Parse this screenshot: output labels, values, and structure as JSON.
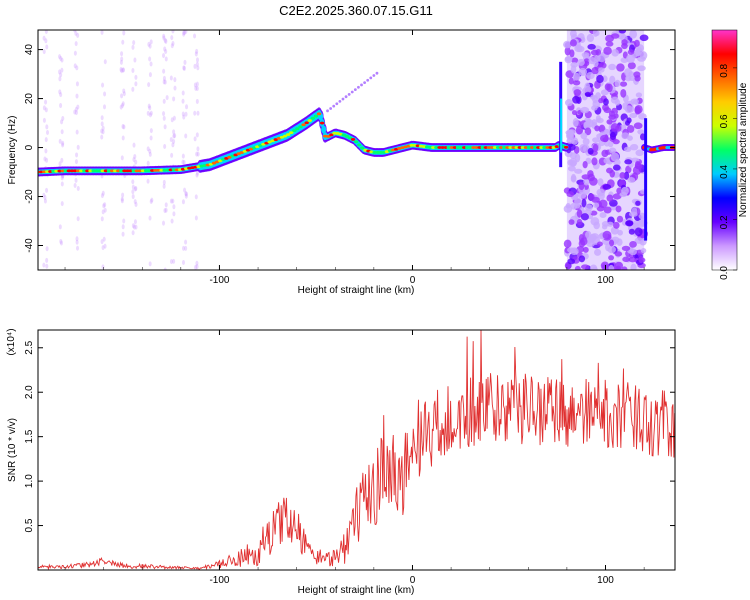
{
  "title": "C2E2.2025.360.07.15.G11",
  "chart_data": [
    {
      "type": "heatmap",
      "xlabel": "Height of straight line (km)",
      "ylabel": "Frequency (Hz)",
      "xlim": [
        -194,
        136
      ],
      "ylim": [
        -50,
        48
      ],
      "xticks": [
        -100,
        0,
        100
      ],
      "xtick_labels": [
        "-100",
        "0",
        "100"
      ],
      "yticks": [
        -40,
        -20,
        0,
        20,
        40
      ],
      "ytick_labels": [
        "-40",
        "-20",
        "0",
        "20",
        "40"
      ],
      "colorbar": {
        "label": "Normalized spectral amplitude",
        "range": [
          0,
          0.95
        ],
        "ticks": [
          0.0,
          0.2,
          0.4,
          0.6,
          0.8
        ],
        "tick_labels": [
          "0.0",
          "0.2",
          "0.4",
          "0.6",
          "0.8"
        ],
        "colors": [
          "#ffffff",
          "#cc99ff",
          "#6600ff",
          "#0000ff",
          "#00ccff",
          "#00ff66",
          "#ccff00",
          "#ffcc00",
          "#ff6600",
          "#ff0000",
          "#ff33cc"
        ]
      },
      "ridge": {
        "x": [
          -194,
          -180,
          -160,
          -140,
          -120,
          -105,
          -95,
          -85,
          -75,
          -65,
          -55,
          -48,
          -45,
          -40,
          -35,
          -30,
          -25,
          -20,
          -15,
          -10,
          -5,
          0,
          10,
          20,
          40,
          60,
          74,
          76,
          80
        ],
        "y": [
          -10,
          -9.5,
          -9.5,
          -9.5,
          -9,
          -7,
          -4,
          -1,
          2,
          5,
          10,
          14,
          4,
          6,
          5,
          3,
          -1,
          -2,
          -2,
          -1,
          0,
          1,
          0,
          0,
          0,
          0,
          0,
          1,
          0
        ]
      },
      "noise_band_x": [
        80,
        120
      ],
      "second_ridge": {
        "x": [
          120,
          124,
          130,
          136
        ],
        "y": [
          0,
          -1,
          0,
          0
        ]
      }
    },
    {
      "type": "line",
      "xlabel": "Height of straight line (km)",
      "ylabel": "SNR (10 * v/v)",
      "y_multiplier": "(x10⁴)",
      "xlim": [
        -194,
        136
      ],
      "ylim": [
        0,
        2.7
      ],
      "xticks": [
        -100,
        0,
        100
      ],
      "xtick_labels": [
        "-100",
        "0",
        "100"
      ],
      "yticks": [
        0.5,
        1.0,
        1.5,
        2.0,
        2.5
      ],
      "ytick_labels": [
        "0.5",
        "1.0",
        "1.5",
        "2.0",
        "2.5"
      ],
      "series": [
        {
          "color": "#e03030",
          "envelope_x": [
            -194,
            -170,
            -160,
            -150,
            -110,
            -100,
            -90,
            -80,
            -72,
            -66,
            -60,
            -55,
            -50,
            -42,
            -35,
            -30,
            -20,
            -15,
            -10,
            -5,
            0,
            5,
            10,
            20,
            30,
            40,
            60,
            80,
            100,
            120,
            136
          ],
          "envelope_y": [
            0.03,
            0.05,
            0.1,
            0.05,
            0.02,
            0.06,
            0.12,
            0.22,
            0.45,
            0.6,
            0.5,
            0.25,
            0.15,
            0.12,
            0.3,
            0.55,
            0.9,
            1.2,
            1.1,
            1.1,
            1.3,
            1.5,
            1.55,
            1.65,
            1.75,
            1.8,
            1.8,
            1.75,
            1.75,
            1.7,
            1.6
          ],
          "noise_amplitude": [
            0.02,
            0.03,
            0.05,
            0.03,
            0.01,
            0.05,
            0.1,
            0.18,
            0.25,
            0.25,
            0.25,
            0.15,
            0.1,
            0.08,
            0.25,
            0.35,
            0.45,
            0.5,
            0.5,
            0.5,
            0.5,
            0.45,
            0.45,
            0.45,
            0.45,
            0.4,
            0.4,
            0.4,
            0.4,
            0.4,
            0.4
          ]
        }
      ]
    }
  ]
}
